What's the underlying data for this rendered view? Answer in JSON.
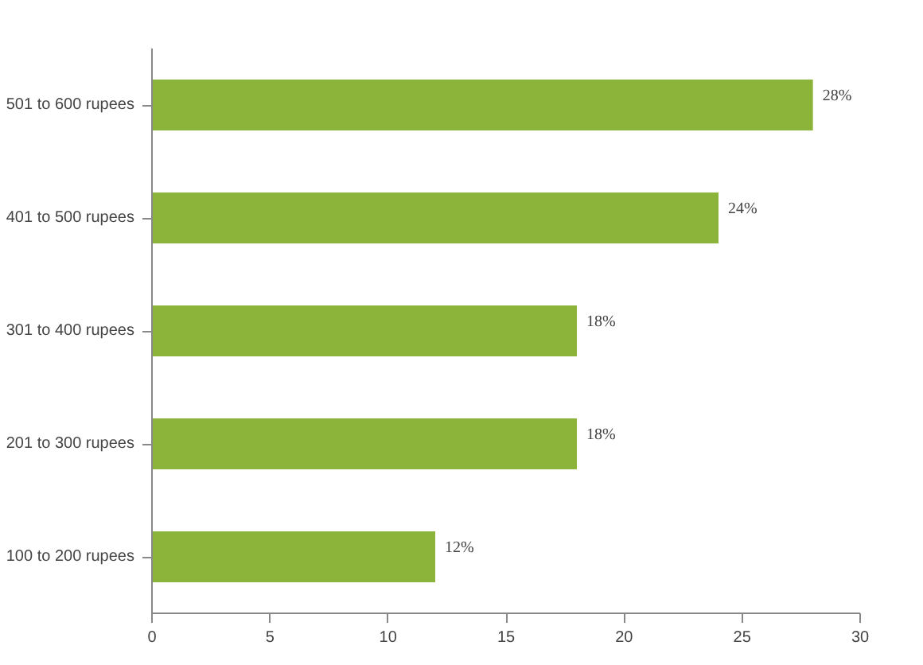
{
  "chart_data": {
    "type": "bar",
    "orientation": "horizontal",
    "categories": [
      "501 to 600 rupees",
      "401 to 500 rupees",
      "301 to 400 rupees",
      "201 to 300 rupees",
      "100 to 200 rupees"
    ],
    "values": [
      28,
      24,
      18,
      18,
      12
    ],
    "value_labels": [
      "28%",
      "24%",
      "18%",
      "18%",
      "12%"
    ],
    "color": "#8db43a",
    "xlim": [
      0,
      30
    ],
    "xticks": [
      0,
      5,
      10,
      15,
      20,
      25,
      30
    ]
  }
}
